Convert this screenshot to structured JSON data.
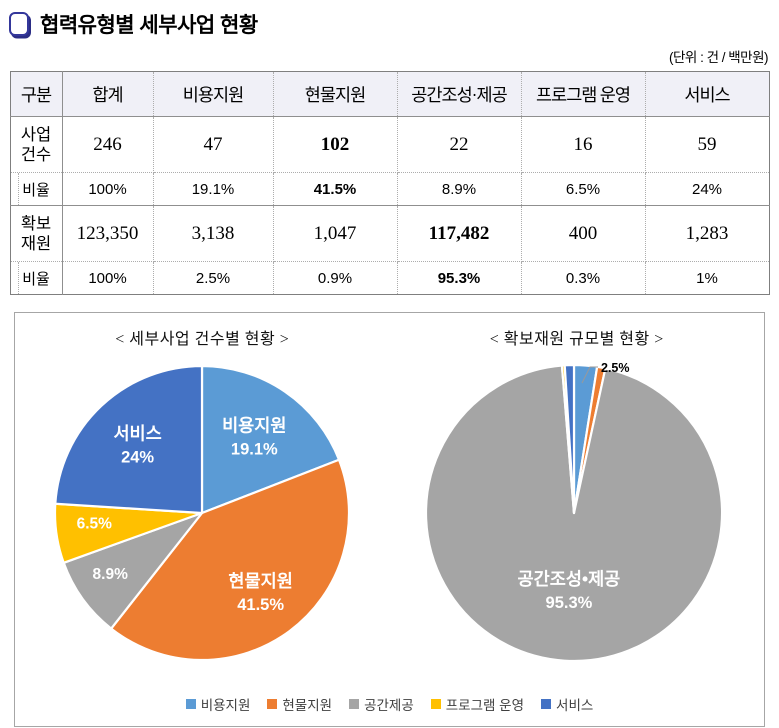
{
  "page": {
    "title": "협력유형별 세부사업 현황",
    "unit_note": "(단위 : 건 / 백만원)"
  },
  "table": {
    "header": [
      "구분",
      "합계",
      "비용지원",
      "현물지원",
      "공간조성·제공",
      "프로그램 운영",
      "서비스"
    ],
    "rows": [
      {
        "label": "사업\n건수",
        "cells": [
          "246",
          "47",
          "102",
          "22",
          "16",
          "59"
        ]
      },
      {
        "label": "비율",
        "cells": [
          "100%",
          "19.1%",
          "41.5%",
          "8.9%",
          "6.5%",
          "24%"
        ]
      },
      {
        "label": "확보\n재원",
        "cells": [
          "123,350",
          "3,138",
          "1,047",
          "117,482",
          "400",
          "1,283"
        ]
      },
      {
        "label": "비율",
        "cells": [
          "100%",
          "2.5%",
          "0.9%",
          "95.3%",
          "0.3%",
          "1%"
        ]
      }
    ]
  },
  "chart_data": [
    {
      "type": "pie",
      "title": "< 세부사업 건수별 현황 >",
      "legend_position": "bottom",
      "slices": [
        {
          "label": "비용지원",
          "value": 19.1,
          "pct": "19.1%",
          "color": "#5B9BD5",
          "show_name": true
        },
        {
          "label": "현물지원",
          "value": 41.5,
          "pct": "41.5%",
          "color": "#ED7D31",
          "show_name": true
        },
        {
          "label": "공간제공",
          "value": 8.9,
          "pct": "8.9%",
          "color": "#A5A5A5",
          "show_name": false
        },
        {
          "label": "프로그램 운영",
          "value": 6.5,
          "pct": "6.5%",
          "color": "#FFC000",
          "show_name": false
        },
        {
          "label": "서비스",
          "value": 24.0,
          "pct": "24%",
          "color": "#4472C4",
          "show_name": true
        }
      ]
    },
    {
      "type": "pie",
      "title": "< 확보재원 규모별 현황 >",
      "legend_position": "bottom",
      "slices": [
        {
          "label": "비용지원",
          "value": 2.5,
          "pct": "2.5%",
          "color": "#5B9BD5",
          "show_name": false,
          "callout": true
        },
        {
          "label": "현물지원",
          "value": 0.9,
          "pct": "0.9%",
          "color": "#ED7D31",
          "show_name": false
        },
        {
          "label": "공간조성•제공",
          "value": 95.3,
          "pct": "95.3%",
          "color": "#A5A5A5",
          "show_name": true
        },
        {
          "label": "프로그램 운영",
          "value": 0.3,
          "pct": "0.3%",
          "color": "#FFC000",
          "show_name": false
        },
        {
          "label": "서비스",
          "value": 1.0,
          "pct": "1%",
          "color": "#4472C4",
          "show_name": false
        }
      ]
    }
  ],
  "legend": {
    "items": [
      {
        "label": "비용지원",
        "color": "#5B9BD5"
      },
      {
        "label": "현물지원",
        "color": "#ED7D31"
      },
      {
        "label": "공간제공",
        "color": "#A5A5A5"
      },
      {
        "label": "프로그램 운영",
        "color": "#FFC000"
      },
      {
        "label": "서비스",
        "color": "#4472C4"
      }
    ]
  }
}
